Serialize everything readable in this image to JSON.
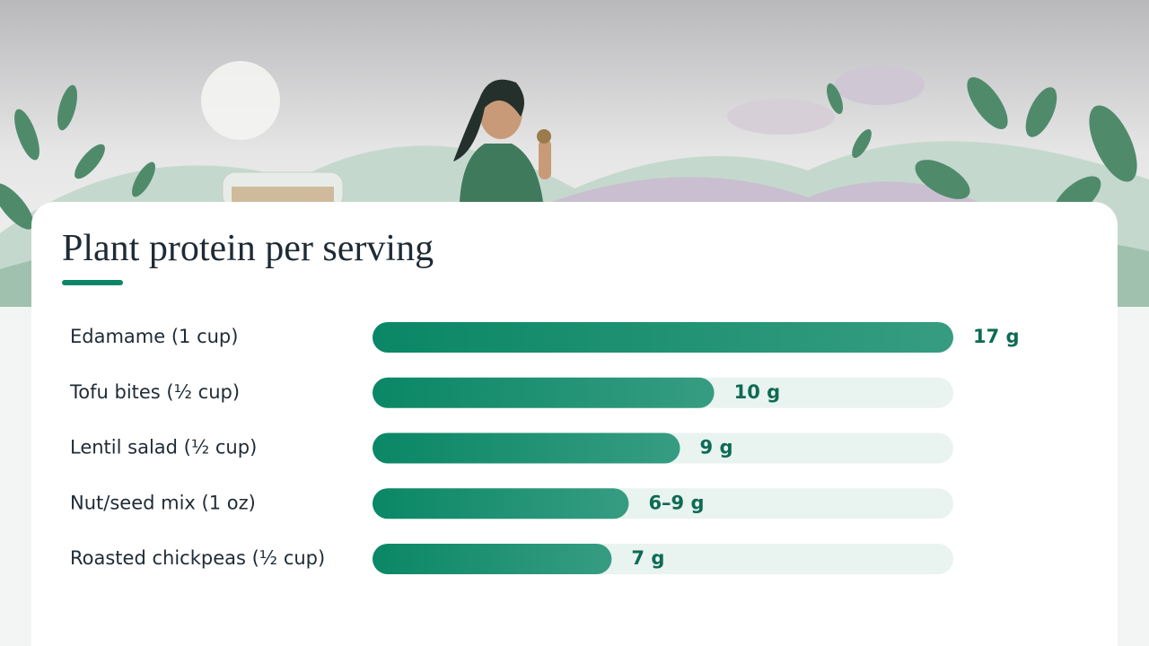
{
  "chart_data": {
    "type": "bar",
    "orientation": "horizontal",
    "title": "Plant protein per serving",
    "categories": [
      "Edamame (1 cup)",
      "Tofu bites (½ cup)",
      "Lentil salad (½ cup)",
      "Nut/seed mix (1 oz)",
      "Roasted chickpeas (½ cup)"
    ],
    "values": [
      17,
      10,
      9,
      7.5,
      7
    ],
    "value_labels": [
      "17 g",
      "10 g",
      "9 g",
      "6–9 g",
      "7 g"
    ],
    "color": "#0a8766",
    "xlim": [
      0,
      17
    ]
  }
}
